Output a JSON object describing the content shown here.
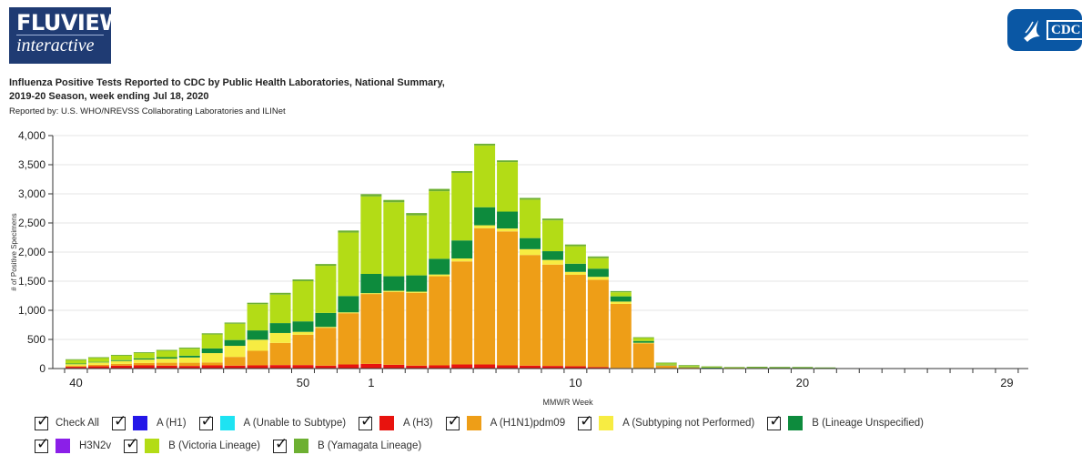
{
  "header": {
    "logo_line1": "FLUVIEW",
    "logo_line2": "interactive",
    "cdc_logo_text": "CDC",
    "title_line1": "Influenza Positive Tests Reported to CDC by Public Health Laboratories, National Summary,",
    "title_line2": "2019-20 Season, week ending Jul 18, 2020",
    "subtitle": "Reported by: U.S. WHO/NREVSS Collaborating Laboratories and ILINet"
  },
  "legend": {
    "check_all": "Check All",
    "items": [
      {
        "label": "A (H1)",
        "color": "#2417e8"
      },
      {
        "label": "A (Unable to Subtype)",
        "color": "#1ee3f2"
      },
      {
        "label": "A (H3)",
        "color": "#e8130e"
      },
      {
        "label": "A (H1N1)pdm09",
        "color": "#ee9e17"
      },
      {
        "label": "A (Subtyping not Performed)",
        "color": "#f7ec42"
      },
      {
        "label": "B (Lineage Unspecified)",
        "color": "#0d8b3d"
      },
      {
        "label": "H3N2v",
        "color": "#8b1fe8"
      },
      {
        "label": "B (Victoria Lineage)",
        "color": "#b3dc16"
      },
      {
        "label": "B (Yamagata Lineage)",
        "color": "#6db032"
      }
    ]
  },
  "chart_data": {
    "type": "bar",
    "stacked": true,
    "xlabel": "MMWR Week",
    "ylabel": "# of Positive Specimens",
    "ylim": [
      0,
      4000
    ],
    "yticks": [
      0,
      500,
      1000,
      1500,
      2000,
      2500,
      3000,
      3500,
      4000
    ],
    "ytick_labels": [
      "0",
      "500",
      "1,000",
      "1,500",
      "2,000",
      "2,500",
      "3,000",
      "3,500",
      "4,000"
    ],
    "categories": [
      "40",
      "41",
      "42",
      "43",
      "44",
      "45",
      "46",
      "47",
      "48",
      "49",
      "50",
      "51",
      "52",
      "1",
      "2",
      "3",
      "4",
      "5",
      "6",
      "7",
      "8",
      "9",
      "10",
      "11",
      "12",
      "13",
      "14",
      "15",
      "16",
      "17",
      "18",
      "19",
      "20",
      "21",
      "22",
      "23",
      "24",
      "25",
      "26",
      "27",
      "28",
      "29"
    ],
    "xtick_labels": [
      "40",
      "50",
      "1",
      "10",
      "20",
      "29"
    ],
    "grid": true,
    "series": [
      {
        "name": "A (H3)",
        "color": "#e8130e",
        "values": [
          30,
          40,
          50,
          55,
          50,
          45,
          55,
          50,
          55,
          60,
          60,
          50,
          70,
          80,
          65,
          50,
          55,
          70,
          70,
          55,
          50,
          45,
          40,
          25,
          10,
          3,
          2,
          1,
          1,
          0,
          0,
          0,
          0,
          0,
          0,
          0,
          0,
          0,
          0,
          0,
          0,
          0
        ]
      },
      {
        "name": "A (H1N1)pdm09",
        "color": "#ee9e17",
        "values": [
          15,
          25,
          30,
          40,
          50,
          55,
          50,
          150,
          250,
          380,
          520,
          650,
          880,
          1200,
          1250,
          1250,
          1530,
          1770,
          2340,
          2300,
          1900,
          1740,
          1570,
          1500,
          1100,
          430,
          50,
          20,
          10,
          5,
          3,
          2,
          2,
          1,
          1,
          0,
          0,
          0,
          0,
          0,
          0,
          0
        ]
      },
      {
        "name": "A (Subtyping not Performed)",
        "color": "#f7ec42",
        "values": [
          30,
          40,
          50,
          60,
          70,
          90,
          160,
          190,
          190,
          170,
          50,
          15,
          15,
          15,
          20,
          20,
          30,
          50,
          50,
          50,
          100,
          80,
          50,
          50,
          40,
          10,
          5,
          3,
          2,
          1,
          1,
          0,
          0,
          0,
          0,
          0,
          0,
          0,
          0,
          0,
          0,
          0
        ]
      },
      {
        "name": "B (Lineage Unspecified)",
        "color": "#0d8b3d",
        "values": [
          10,
          10,
          15,
          20,
          25,
          30,
          80,
          100,
          160,
          170,
          180,
          240,
          280,
          330,
          250,
          280,
          270,
          310,
          310,
          290,
          190,
          150,
          140,
          140,
          90,
          30,
          10,
          5,
          3,
          2,
          1,
          1,
          1,
          0,
          0,
          0,
          0,
          0,
          0,
          0,
          0,
          0
        ]
      },
      {
        "name": "B (Victoria Lineage)",
        "color": "#b3dc16",
        "values": [
          60,
          65,
          75,
          90,
          110,
          120,
          240,
          280,
          450,
          490,
          690,
          810,
          1090,
          1330,
          1270,
          1030,
          1160,
          1160,
          1060,
          850,
          660,
          530,
          300,
          180,
          70,
          50,
          20,
          15,
          10,
          8,
          6,
          5,
          4,
          3,
          2,
          2,
          1,
          1,
          1,
          1,
          1,
          1
        ]
      },
      {
        "name": "B (Yamagata Lineage)",
        "color": "#6db032",
        "values": [
          15,
          15,
          15,
          15,
          15,
          20,
          20,
          20,
          25,
          30,
          30,
          30,
          35,
          40,
          40,
          40,
          40,
          30,
          30,
          30,
          30,
          30,
          30,
          30,
          20,
          15,
          15,
          15,
          12,
          10,
          20,
          20,
          20,
          15,
          5,
          5,
          5,
          5,
          5,
          5,
          5,
          5
        ]
      }
    ]
  }
}
